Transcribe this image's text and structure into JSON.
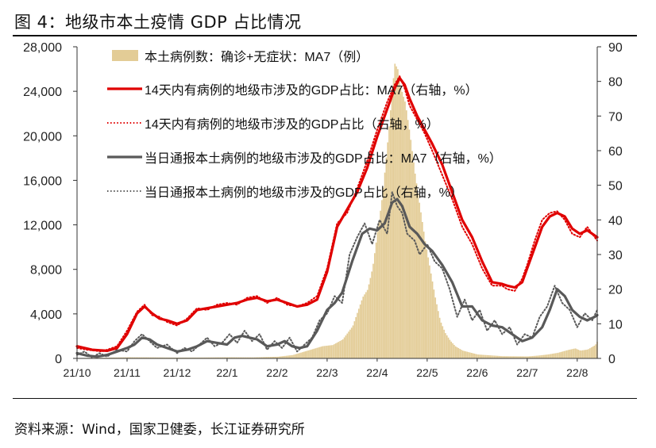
{
  "figure": {
    "title": "图  4：地级市本土疫情 GDP 占比情况",
    "source": "资料来源：Wind，国家卫健委，长江证券研究所"
  },
  "chart_data": {
    "type": "bar+line",
    "title": "地级市本土疫情 GDP 占比情况",
    "categories": [
      "21/10",
      "21/11",
      "21/12",
      "22/1",
      "22/2",
      "22/3",
      "22/4",
      "22/5",
      "22/6",
      "22/7",
      "22/8"
    ],
    "y_left": {
      "min": 0,
      "max": 28000,
      "ticks": [
        "0",
        "4,000",
        "8,000",
        "12,000",
        "16,000",
        "20,000",
        "24,000",
        "28,000"
      ]
    },
    "y_right": {
      "min": 0,
      "max": 90,
      "ticks": [
        "0",
        "10",
        "20",
        "30",
        "40",
        "50",
        "60",
        "70",
        "80",
        "90"
      ]
    },
    "x_range": [
      0,
      10.4
    ],
    "legend": [
      "本土病例数：确诊+无症状：MA7（例）",
      "14天内有病例的地级市涉及的GDP占比：MA7（右轴，%）",
      "14天内有病例的地级市涉及的GDP占比（右轴，%）",
      "当日通报本土病例的地级市涉及的GDP占比：MA7（右轴，%）",
      "当日通报本土病例的地级市涉及的GDP占比（右轴，%）"
    ],
    "colors": {
      "bars": "#e3cc96",
      "gdp14_ma7": "#e00000",
      "gdp14": "#e00000",
      "daily_ma7": "#595959",
      "daily": "#595959",
      "axis": "#333333"
    },
    "series": [
      {
        "name": "本土病例数：确诊+无症状：MA7（例）",
        "axis": "left",
        "kind": "bar",
        "points": [
          [
            0,
            40
          ],
          [
            0.5,
            60
          ],
          [
            1,
            100
          ],
          [
            1.5,
            90
          ],
          [
            2,
            70
          ],
          [
            2.5,
            80
          ],
          [
            3,
            100
          ],
          [
            3.5,
            90
          ],
          [
            4,
            150
          ],
          [
            4.3,
            300
          ],
          [
            4.6,
            700
          ],
          [
            4.9,
            1100
          ],
          [
            5.1,
            1200
          ],
          [
            5.3,
            1700
          ],
          [
            5.5,
            2900
          ],
          [
            5.7,
            5500
          ],
          [
            5.8,
            6200
          ],
          [
            5.9,
            8200
          ],
          [
            6.0,
            11500
          ],
          [
            6.1,
            14800
          ],
          [
            6.2,
            19500
          ],
          [
            6.28,
            23500
          ],
          [
            6.34,
            26500
          ],
          [
            6.4,
            26000
          ],
          [
            6.45,
            24500
          ],
          [
            6.55,
            23000
          ],
          [
            6.65,
            20000
          ],
          [
            6.75,
            16500
          ],
          [
            6.85,
            13500
          ],
          [
            6.95,
            10500
          ],
          [
            7.05,
            8000
          ],
          [
            7.15,
            5500
          ],
          [
            7.25,
            3400
          ],
          [
            7.35,
            2300
          ],
          [
            7.45,
            1600
          ],
          [
            7.55,
            1100
          ],
          [
            7.7,
            700
          ],
          [
            8,
            350
          ],
          [
            8.5,
            200
          ],
          [
            9,
            180
          ],
          [
            9.2,
            250
          ],
          [
            9.4,
            350
          ],
          [
            9.6,
            500
          ],
          [
            9.8,
            750
          ],
          [
            9.95,
            900
          ],
          [
            10.05,
            700
          ],
          [
            10.2,
            800
          ],
          [
            10.35,
            1200
          ],
          [
            10.4,
            1600
          ]
        ]
      },
      {
        "name": "14天内有病例的地级市涉及的GDP占比：MA7（右轴，%）",
        "axis": "right",
        "kind": "solid-line",
        "points": [
          [
            0,
            3.5
          ],
          [
            0.3,
            2.5
          ],
          [
            0.6,
            2.2
          ],
          [
            0.8,
            3
          ],
          [
            1,
            7
          ],
          [
            1.2,
            13
          ],
          [
            1.35,
            15
          ],
          [
            1.5,
            13
          ],
          [
            1.65,
            11.5
          ],
          [
            1.8,
            11
          ],
          [
            2,
            10
          ],
          [
            2.2,
            11
          ],
          [
            2.4,
            14
          ],
          [
            2.6,
            14.5
          ],
          [
            2.8,
            15
          ],
          [
            3,
            15.5
          ],
          [
            3.2,
            16
          ],
          [
            3.4,
            17
          ],
          [
            3.6,
            17.5
          ],
          [
            3.8,
            16.5
          ],
          [
            4,
            17
          ],
          [
            4.2,
            16
          ],
          [
            4.4,
            15
          ],
          [
            4.6,
            15.5
          ],
          [
            4.8,
            17
          ],
          [
            5,
            25
          ],
          [
            5.2,
            38
          ],
          [
            5.4,
            43
          ],
          [
            5.6,
            48
          ],
          [
            5.8,
            55
          ],
          [
            6,
            64
          ],
          [
            6.2,
            72
          ],
          [
            6.35,
            78
          ],
          [
            6.45,
            81
          ],
          [
            6.55,
            79
          ],
          [
            6.65,
            75
          ],
          [
            6.8,
            70
          ],
          [
            6.95,
            66
          ],
          [
            7.1,
            62
          ],
          [
            7.3,
            56
          ],
          [
            7.5,
            48
          ],
          [
            7.7,
            40
          ],
          [
            7.9,
            35
          ],
          [
            8.1,
            28
          ],
          [
            8.3,
            22
          ],
          [
            8.5,
            21.5
          ],
          [
            8.6,
            21
          ],
          [
            8.75,
            20.5
          ],
          [
            8.9,
            22
          ],
          [
            9.0,
            26
          ],
          [
            9.15,
            32
          ],
          [
            9.3,
            38
          ],
          [
            9.45,
            41
          ],
          [
            9.6,
            42
          ],
          [
            9.75,
            41
          ],
          [
            9.9,
            37.5
          ],
          [
            10.05,
            36
          ],
          [
            10.2,
            37
          ],
          [
            10.3,
            36
          ],
          [
            10.4,
            35
          ]
        ]
      },
      {
        "name": "14天内有病例的地级市涉及的GDP占比（右轴，%）",
        "axis": "right",
        "kind": "dotted-line",
        "points": [
          [
            0,
            3
          ],
          [
            0.2,
            2.5
          ],
          [
            0.5,
            2
          ],
          [
            0.8,
            3.5
          ],
          [
            1,
            8
          ],
          [
            1.2,
            13.5
          ],
          [
            1.35,
            15.5
          ],
          [
            1.5,
            12.5
          ],
          [
            1.65,
            12
          ],
          [
            1.8,
            10.5
          ],
          [
            2,
            9.5
          ],
          [
            2.2,
            11.5
          ],
          [
            2.4,
            14.5
          ],
          [
            2.6,
            14
          ],
          [
            2.8,
            15.5
          ],
          [
            3,
            16
          ],
          [
            3.2,
            15.5
          ],
          [
            3.4,
            17.5
          ],
          [
            3.6,
            18
          ],
          [
            3.8,
            16
          ],
          [
            4,
            17.5
          ],
          [
            4.2,
            15.5
          ],
          [
            4.4,
            15
          ],
          [
            4.6,
            16
          ],
          [
            4.8,
            18
          ],
          [
            5,
            26
          ],
          [
            5.2,
            39
          ],
          [
            5.4,
            42
          ],
          [
            5.6,
            49
          ],
          [
            5.8,
            57
          ],
          [
            6,
            66
          ],
          [
            6.2,
            74
          ],
          [
            6.35,
            79
          ],
          [
            6.45,
            81.5
          ],
          [
            6.55,
            78
          ],
          [
            6.65,
            73
          ],
          [
            6.8,
            69
          ],
          [
            6.95,
            65
          ],
          [
            7.1,
            60
          ],
          [
            7.3,
            53
          ],
          [
            7.5,
            46
          ],
          [
            7.7,
            38
          ],
          [
            7.9,
            33
          ],
          [
            8.1,
            26
          ],
          [
            8.3,
            21
          ],
          [
            8.5,
            21
          ],
          [
            8.6,
            20
          ],
          [
            8.75,
            19.5
          ],
          [
            8.9,
            23
          ],
          [
            9.0,
            27
          ],
          [
            9.15,
            34
          ],
          [
            9.3,
            40
          ],
          [
            9.45,
            42
          ],
          [
            9.6,
            42.5
          ],
          [
            9.75,
            40
          ],
          [
            9.9,
            36
          ],
          [
            10.05,
            35
          ],
          [
            10.2,
            38
          ],
          [
            10.3,
            36
          ],
          [
            10.4,
            34
          ]
        ]
      },
      {
        "name": "当日通报本土病例的地级市涉及的GDP占比：MA7（右轴，%）",
        "axis": "right",
        "kind": "solid-line",
        "points": [
          [
            0,
            1.5
          ],
          [
            0.2,
            0.8
          ],
          [
            0.4,
            0.5
          ],
          [
            0.6,
            1
          ],
          [
            0.8,
            2
          ],
          [
            1,
            3
          ],
          [
            1.15,
            4
          ],
          [
            1.3,
            6
          ],
          [
            1.45,
            5.5
          ],
          [
            1.6,
            4
          ],
          [
            1.8,
            3
          ],
          [
            2,
            2
          ],
          [
            2.2,
            2.5
          ],
          [
            2.4,
            3.5
          ],
          [
            2.6,
            5
          ],
          [
            2.8,
            4.5
          ],
          [
            3,
            4
          ],
          [
            3.15,
            6
          ],
          [
            3.3,
            6.5
          ],
          [
            3.45,
            6
          ],
          [
            3.6,
            5.5
          ],
          [
            3.8,
            3.5
          ],
          [
            4,
            4
          ],
          [
            4.15,
            5
          ],
          [
            4.3,
            3.5
          ],
          [
            4.45,
            3
          ],
          [
            4.6,
            3.5
          ],
          [
            4.8,
            8
          ],
          [
            5,
            14
          ],
          [
            5.15,
            16
          ],
          [
            5.3,
            19
          ],
          [
            5.5,
            28
          ],
          [
            5.7,
            36
          ],
          [
            5.85,
            37.5
          ],
          [
            6,
            37
          ],
          [
            6.15,
            39
          ],
          [
            6.3,
            45
          ],
          [
            6.4,
            46
          ],
          [
            6.5,
            44
          ],
          [
            6.65,
            38
          ],
          [
            6.8,
            36
          ],
          [
            6.95,
            33
          ],
          [
            7.1,
            31
          ],
          [
            7.3,
            27
          ],
          [
            7.5,
            22
          ],
          [
            7.7,
            15
          ],
          [
            7.9,
            15
          ],
          [
            8.1,
            11
          ],
          [
            8.3,
            9.5
          ],
          [
            8.5,
            9
          ],
          [
            8.7,
            7
          ],
          [
            8.9,
            5
          ],
          [
            9.1,
            6
          ],
          [
            9.3,
            9
          ],
          [
            9.45,
            14
          ],
          [
            9.6,
            20
          ],
          [
            9.75,
            18
          ],
          [
            9.9,
            14
          ],
          [
            10.05,
            12
          ],
          [
            10.2,
            11
          ],
          [
            10.35,
            12
          ],
          [
            10.4,
            12.5
          ]
        ]
      },
      {
        "name": "当日通报本土病例的地级市涉及的GDP占比（右轴，%）",
        "axis": "right",
        "kind": "dotted-line",
        "points": [
          [
            0,
            1
          ],
          [
            0.15,
            2
          ],
          [
            0.3,
            0.3
          ],
          [
            0.45,
            1.5
          ],
          [
            0.6,
            0.5
          ],
          [
            0.8,
            2.5
          ],
          [
            1,
            2
          ],
          [
            1.15,
            5
          ],
          [
            1.3,
            7
          ],
          [
            1.45,
            5
          ],
          [
            1.6,
            3
          ],
          [
            1.8,
            4
          ],
          [
            2,
            1.5
          ],
          [
            2.15,
            3
          ],
          [
            2.3,
            2
          ],
          [
            2.45,
            4
          ],
          [
            2.6,
            6
          ],
          [
            2.75,
            3.5
          ],
          [
            2.9,
            4.5
          ],
          [
            3.05,
            7
          ],
          [
            3.2,
            4.5
          ],
          [
            3.35,
            8
          ],
          [
            3.5,
            5
          ],
          [
            3.65,
            7
          ],
          [
            3.8,
            2.5
          ],
          [
            3.95,
            5
          ],
          [
            4.1,
            3
          ],
          [
            4.25,
            6
          ],
          [
            4.4,
            2
          ],
          [
            4.55,
            4
          ],
          [
            4.7,
            6
          ],
          [
            4.85,
            11
          ],
          [
            5,
            13
          ],
          [
            5.15,
            18
          ],
          [
            5.3,
            16
          ],
          [
            5.45,
            30
          ],
          [
            5.6,
            35
          ],
          [
            5.75,
            39
          ],
          [
            5.9,
            33
          ],
          [
            6.05,
            40
          ],
          [
            6.2,
            36
          ],
          [
            6.3,
            48
          ],
          [
            6.4,
            44
          ],
          [
            6.5,
            42
          ],
          [
            6.6,
            36
          ],
          [
            6.75,
            34
          ],
          [
            6.85,
            30
          ],
          [
            7,
            33
          ],
          [
            7.15,
            28
          ],
          [
            7.3,
            26
          ],
          [
            7.45,
            20
          ],
          [
            7.6,
            12
          ],
          [
            7.75,
            17
          ],
          [
            7.9,
            11
          ],
          [
            8.05,
            14
          ],
          [
            8.2,
            8
          ],
          [
            8.35,
            11
          ],
          [
            8.5,
            7
          ],
          [
            8.65,
            9
          ],
          [
            8.8,
            4
          ],
          [
            8.95,
            7
          ],
          [
            9.1,
            6
          ],
          [
            9.25,
            12
          ],
          [
            9.4,
            15
          ],
          [
            9.55,
            21
          ],
          [
            9.7,
            16
          ],
          [
            9.85,
            14
          ],
          [
            10.0,
            9
          ],
          [
            10.15,
            13
          ],
          [
            10.3,
            11
          ],
          [
            10.4,
            14
          ]
        ]
      }
    ]
  }
}
